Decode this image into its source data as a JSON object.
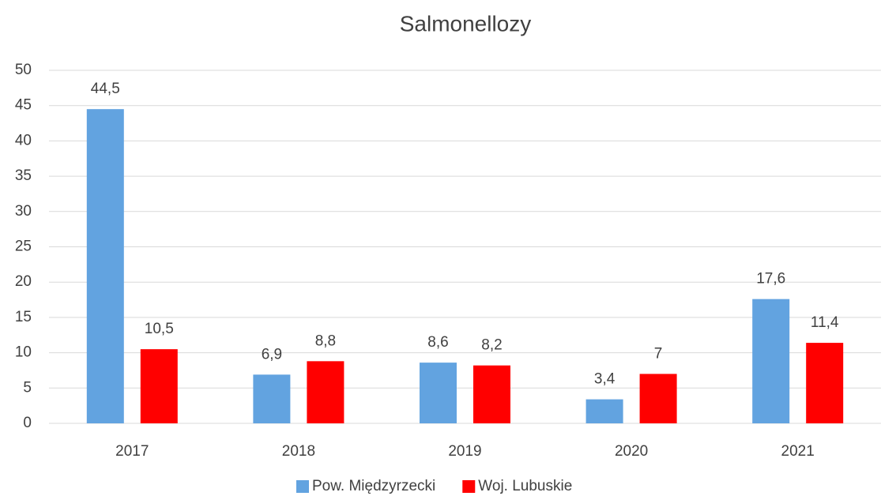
{
  "chart_data": {
    "type": "bar",
    "title": "Salmonellozy",
    "categories": [
      "2017",
      "2018",
      "2019",
      "2020",
      "2021"
    ],
    "series": [
      {
        "name": "Pow. Międzyrzecki",
        "color": "#62a3e0",
        "values": [
          44.5,
          6.9,
          8.6,
          3.4,
          17.6
        ],
        "value_labels": [
          "44,5",
          "6,9",
          "8,6",
          "3,4",
          "17,6"
        ]
      },
      {
        "name": "Woj. Lubuskie",
        "color": "#ff0000",
        "values": [
          10.5,
          8.8,
          8.2,
          7,
          11.4
        ],
        "value_labels": [
          "10,5",
          "8,8",
          "8,2",
          "7",
          "11,4"
        ]
      }
    ],
    "ylim": [
      0,
      50
    ],
    "yticks": [
      0,
      5,
      10,
      15,
      20,
      25,
      30,
      35,
      40,
      45,
      50
    ],
    "grid": true,
    "legend": "bottom"
  }
}
